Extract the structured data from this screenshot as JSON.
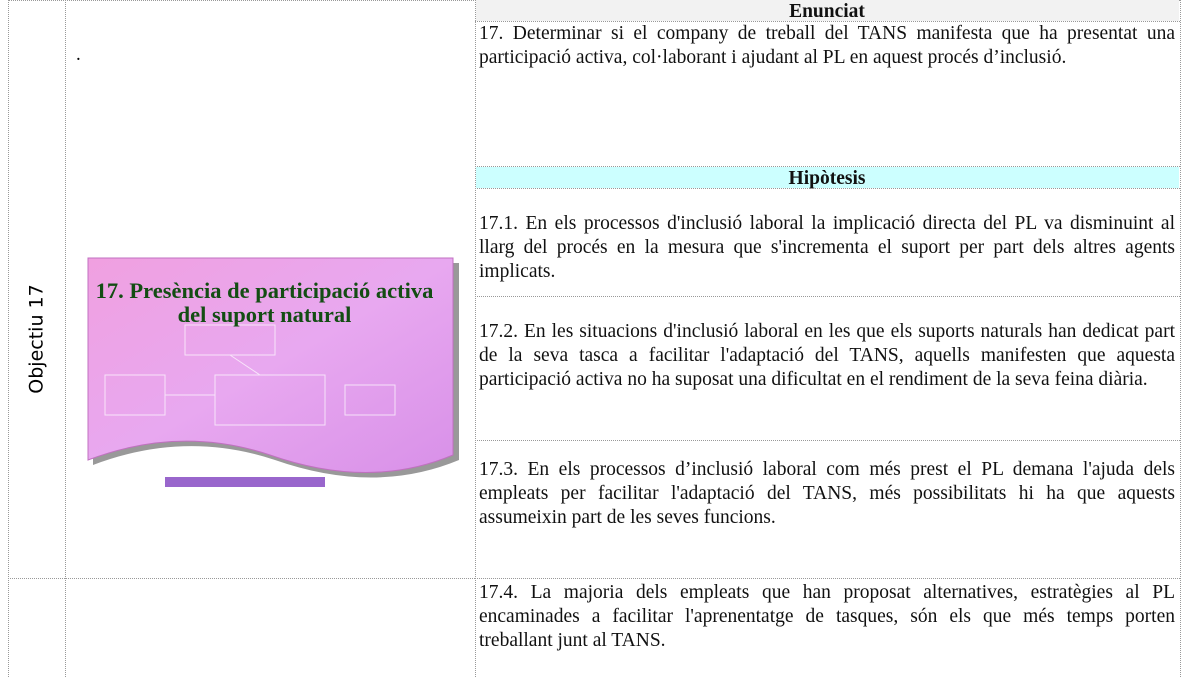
{
  "objective_label": "Objectiu 17",
  "dot": ".",
  "figure": {
    "title": "17. Presència de participació activa del suport natural"
  },
  "table": {
    "enunciat_header": "Enunciat",
    "enunciat": "17. Determinar si el company de treball del TANS manifesta que ha presentat una participació activa, col·laborant i ajudant al PL en aquest procés d’inclusió.",
    "hipotesis_header": "Hipòtesis",
    "hypotheses": [
      "17.1. En els processos d'inclusió laboral la implicació directa del PL va disminuint al llarg del procés en la mesura que s'incrementa el suport per part dels altres agents implicats.",
      "17.2. En les situacions d'inclusió laboral en les que els suports naturals han dedicat part de la seva tasca a facilitar l'adaptació del TANS, aquells manifesten que aquesta participació activa no ha suposat una dificultat en el rendiment de la seva feina diària.",
      "17.3. En els processos d’inclusió laboral com més prest el PL demana l'ajuda dels empleats per facilitar l'adaptació del TANS, més possibilitats hi ha que aquests assumeixin part de les seves funcions.",
      "17.4. La majoria dels empleats que han proposat alternatives, estratègies al PL encaminades a facilitar l'aprenentatge de tasques, són els que més temps porten treballant junt al TANS."
    ]
  }
}
